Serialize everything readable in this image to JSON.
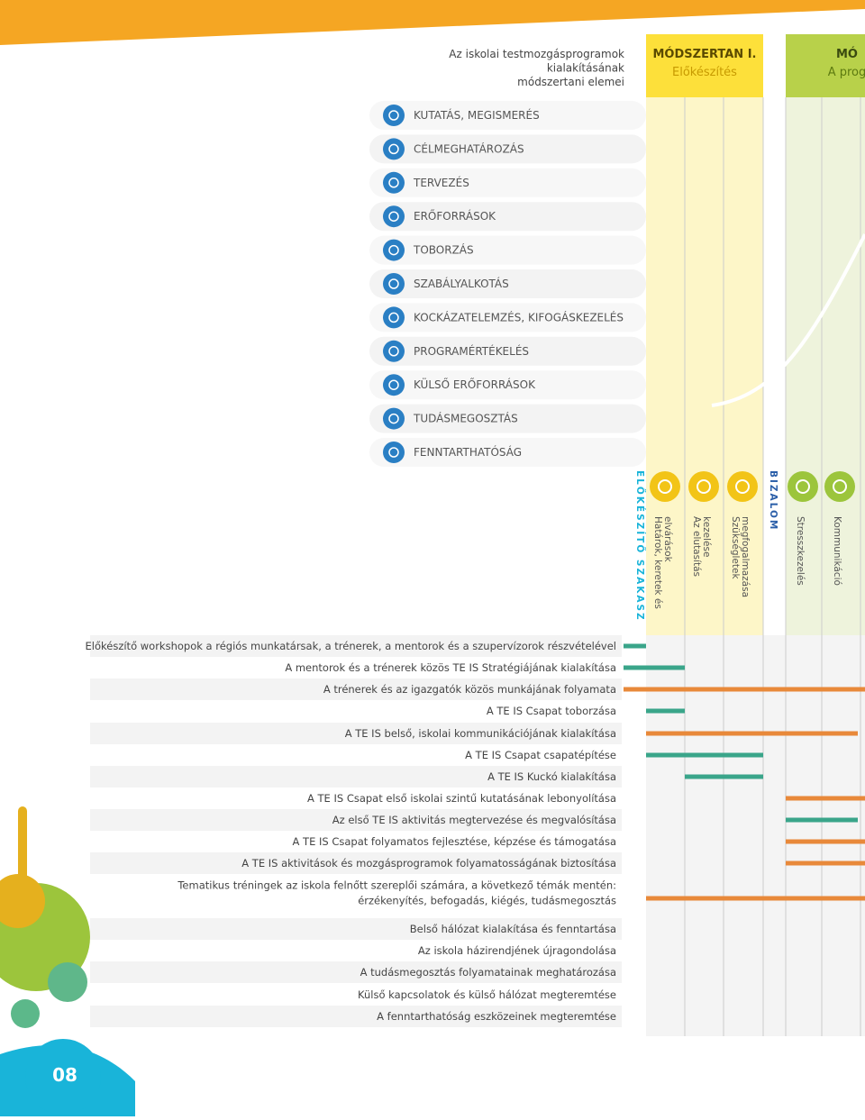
{
  "header": {
    "title_lines": [
      "Az iskolai testmozgásprogramok",
      "kialakításának",
      "módszertani elemei"
    ],
    "methods": [
      {
        "title": "MÓDSZERTAN I.",
        "subtitle": "Előkészítés"
      },
      {
        "title": "MÓ",
        "subtitle": "A prog"
      }
    ]
  },
  "elements": [
    "KUTATÁS, MEGISMERÉS",
    "CÉLMEGHATÁROZÁS",
    "TERVEZÉS",
    "ERŐFORRÁSOK",
    "TOBORZÁS",
    "SZABÁLYALKOTÁS",
    "KOCKÁZATELEMZÉS, KIFOGÁSKEZELÉS",
    "PROGRAMÉRTÉKELÉS",
    "KÜLSŐ ERŐFORRÁSOK",
    "TUDÁSMEGOSZTÁS",
    "FENNTARTHATÓSÁG"
  ],
  "phases": [
    "ELŐKÉSZÍTŐ SZAKASZ",
    "BIZALOM"
  ],
  "columns": [
    [
      "Határok, keretek és",
      "elvárások"
    ],
    [
      "Az elutasítás",
      "kezelése"
    ],
    [
      "Szükségletek",
      "megfogalmazása"
    ],
    [
      "Stresszkezelés"
    ],
    [
      "Kommunikáció"
    ]
  ],
  "tasks": [
    [
      "Előkészítő workshopok a régiós munkatársak, a trénerek, a mentorok és a szupervízorok részvételével"
    ],
    [
      "A mentorok és a trénerek közös TE IS Stratégiájának kialakítása"
    ],
    [
      "A trénerek és az igazgatók közös munkájának folyamata"
    ],
    [
      "A TE IS Csapat toborzása"
    ],
    [
      "A TE IS belső, iskolai kommunikációjának kialakítása"
    ],
    [
      "A TE IS Csapat csapatépítése"
    ],
    [
      "A TE IS Kuckó kialakítása"
    ],
    [
      "A TE IS Csapat első iskolai szintű kutatásának lebonyolítása"
    ],
    [
      "Az első TE IS aktivitás megtervezése és megvalósítása"
    ],
    [
      "A TE IS Csapat folyamatos fejlesztése, képzése és támogatása"
    ],
    [
      "A TE IS aktivitások és mozgásprogramok folyamatosságának biztosítása"
    ],
    [
      "Tematikus tréningek az iskola felnőtt szereplői számára, a következő témák mentén:",
      "érzékenyítés, befogadás, kiégés, tudásmegosztás"
    ],
    [
      "Belső hálózat kialakítása és fenntartása"
    ],
    [
      "Az iskola házirendjének újragondolása"
    ],
    [
      "A tudásmegosztás folyamatainak meghatározása"
    ],
    [
      "Külső kapcsolatok és külső hálózat megteremtése"
    ],
    [
      "A fenntarthatóság eszközeinek megteremtése"
    ]
  ],
  "page_number": "08"
}
